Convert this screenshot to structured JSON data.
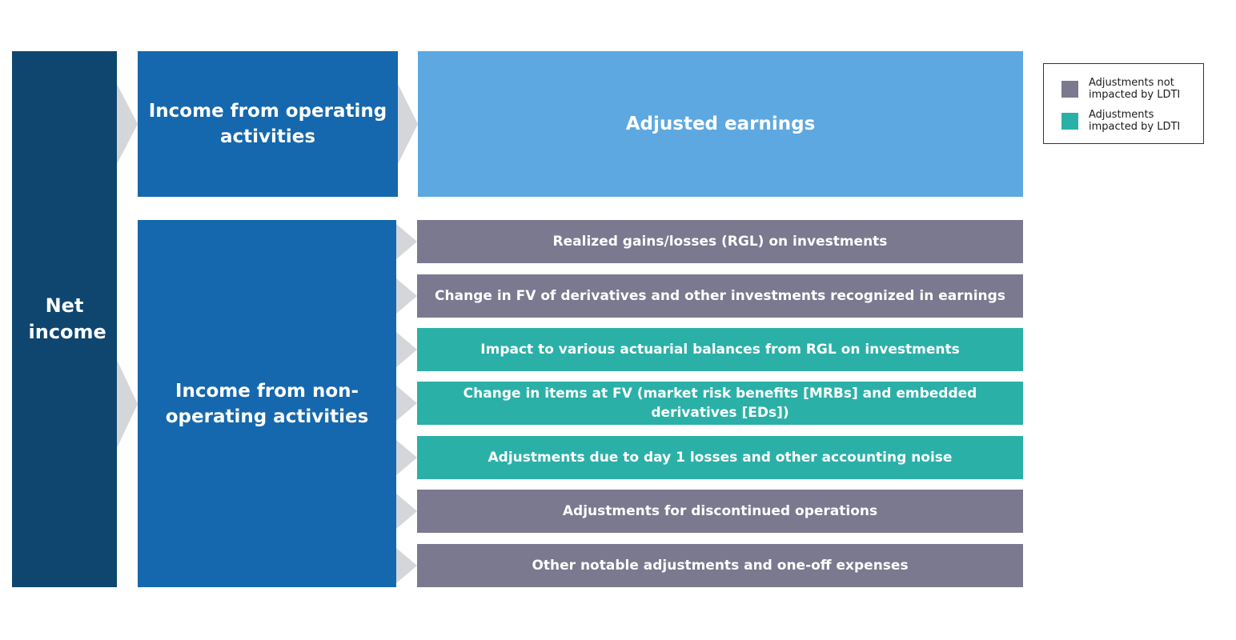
{
  "colors": {
    "net_income": "#0e4670",
    "income": "#1568ad",
    "adjusted_earnings": "#5da8e0",
    "not_impacted": "#7a798f",
    "impacted": "#2bb0a8",
    "chevron": "#d5d6da"
  },
  "net_income": {
    "label": "Net income"
  },
  "operating": {
    "label": "Income from operating activities"
  },
  "non_operating": {
    "label": "Income from non-operating activities"
  },
  "adjusted_earnings": {
    "label": "Adjusted earnings"
  },
  "adjustments": [
    {
      "label": "Realized gains/losses (RGL) on investments",
      "category": "not_impacted"
    },
    {
      "label": "Change in FV of derivatives and other investments recognized in earnings",
      "category": "not_impacted"
    },
    {
      "label": "Impact to various actuarial balances from RGL on investments",
      "category": "impacted"
    },
    {
      "label": "Change in items at FV (market risk benefits [MRBs] and embedded derivatives [EDs])",
      "category": "impacted"
    },
    {
      "label": "Adjustments due to day 1 losses and other accounting noise",
      "category": "impacted"
    },
    {
      "label": "Adjustments for discontinued operations",
      "category": "not_impacted"
    },
    {
      "label": "Other notable adjustments and one-off expenses",
      "category": "not_impacted"
    }
  ],
  "legend": {
    "not_impacted": "Adjustments not impacted by LDTI",
    "impacted": "Adjustments impacted by LDTI"
  }
}
